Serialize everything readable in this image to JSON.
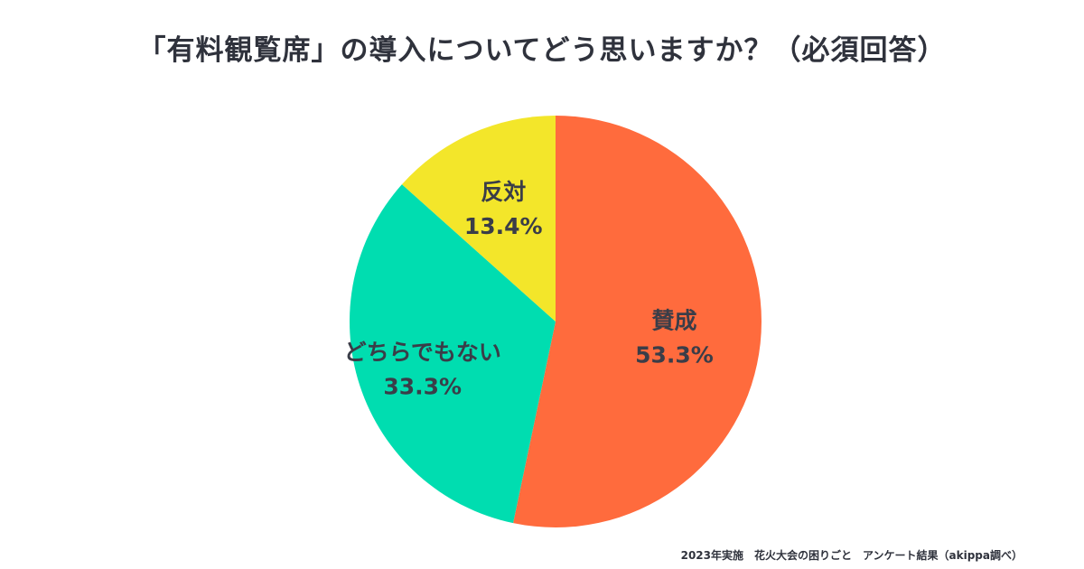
{
  "chart_data": {
    "type": "pie",
    "title": "「有料観覧席」の導入についてどう思いますか？（必須回答）",
    "slices": [
      {
        "label": "賛成",
        "value": 53.3,
        "value_label": "53.3%",
        "color": "#ff6b3d"
      },
      {
        "label": "どちらでもない",
        "value": 33.3,
        "value_label": "33.3%",
        "color": "#00ddb0"
      },
      {
        "label": "反対",
        "value": 13.4,
        "value_label": "13.4%",
        "color": "#f3e62a"
      }
    ],
    "start_angle": "12 o'clock",
    "direction": "clockwise",
    "source": "2023年実施　花火大会の困りごと　アンケート結果（akippa調べ）"
  }
}
